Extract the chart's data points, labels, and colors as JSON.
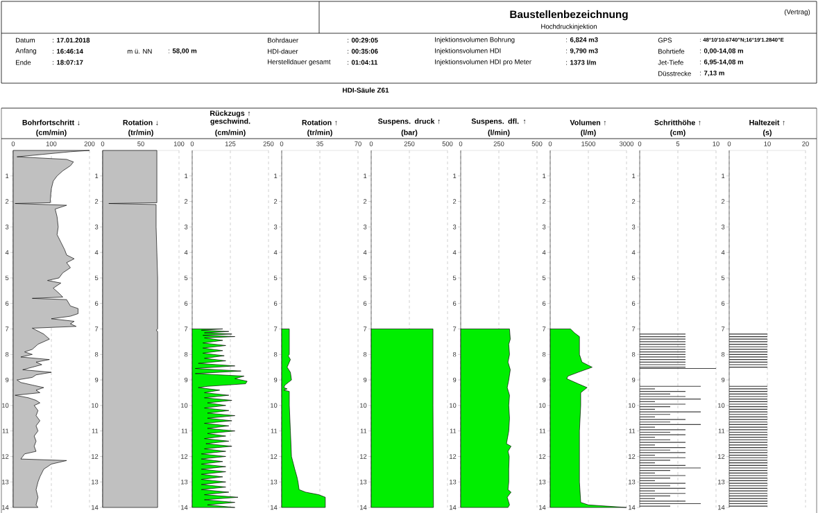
{
  "chart_data": [
    {
      "type": "other",
      "title": "Baustellenbezeichnung",
      "subtitle": "Hochdruckinjektion",
      "annotations": [
        "(Vertrag)",
        "Datum",
        ": **17.01.2018**",
        "Anfang",
        ": **16:46:14**",
        "Ende",
        ": **18:07:17**",
        "m ü. NN",
        ": **58,00 m**",
        "Bohrdauer",
        ": **00:29:05**",
        "HDI-dauer",
        ": **00:35:06**",
        "Herstelldauer gesamt",
        ": **01:04:11**",
        "Injektionsvolumen Bohrung",
        ": **6,824 m3**",
        "Injektionsvolumen HDI",
        ": **9,790 m3**",
        "Injektionsvolumen HDI pro Meter",
        ": **1373 l/m**",
        "GPS",
        ": **48°10'10.6740\"N;16°19'1.2840\"E**",
        "Bohrtiefe",
        ": **0,00-14,08 m**",
        "Jet-Tiefe",
        ": **6,95-14,08 m**",
        "Düsstrecke",
        ": **7,13 m**",
        "HDI-Säule Z61"
      ]
    },
    {
      "type": "area",
      "title": "Bohrfortschritt ↓",
      "xlabel": "(cm/min)",
      "xlim": [
        0,
        200
      ],
      "xticks": [
        0,
        100,
        200
      ],
      "ylim": [
        14,
        0
      ],
      "yticks": [
        1,
        2,
        3,
        4,
        5,
        6,
        7,
        8,
        9,
        10,
        11,
        12,
        13,
        14
      ],
      "grid": "x",
      "series": [
        {
          "color": "#c0c0c0",
          "x": [
            0,
            200,
            150,
            10,
            140,
            158,
            150,
            130,
            115,
            105,
            100,
            98,
            97,
            5,
            140,
            110,
            115,
            118,
            115,
            125,
            135,
            140,
            160,
            140,
            150,
            130,
            120,
            90,
            125,
            105,
            120,
            130,
            50,
            140,
            150,
            170,
            170,
            150,
            100,
            160,
            150,
            165,
            50,
            80,
            95,
            65,
            50,
            30,
            50,
            20,
            95,
            60,
            75,
            50,
            25,
            100,
            60,
            50,
            10,
            20,
            50,
            80,
            60,
            70,
            5,
            40,
            60,
            70,
            55,
            65,
            60,
            70,
            60,
            65,
            55,
            60,
            55,
            60,
            30,
            25,
            20,
            140,
            100,
            80,
            70,
            65,
            60,
            65,
            60,
            65,
            0
          ],
          "values": [
            0,
            0,
            0.05,
            0.25,
            0.35,
            0.45,
            0.6,
            0.8,
            1.0,
            1.2,
            1.5,
            1.8,
            2.05,
            2.08,
            2.15,
            2.3,
            2.6,
            3.0,
            3.3,
            3.6,
            3.9,
            4.1,
            4.25,
            4.4,
            4.6,
            4.8,
            5.0,
            5.1,
            5.2,
            5.4,
            5.6,
            5.75,
            5.8,
            5.85,
            6.1,
            6.2,
            6.4,
            6.5,
            6.6,
            6.7,
            6.8,
            6.9,
            6.97,
            7.2,
            7.4,
            7.6,
            7.8,
            7.9,
            8.0,
            8.1,
            8.2,
            8.3,
            8.4,
            8.5,
            8.6,
            8.7,
            8.8,
            8.9,
            9.0,
            9.1,
            9.2,
            9.3,
            9.4,
            9.5,
            9.6,
            9.7,
            9.8,
            9.9,
            10.0,
            10.2,
            10.4,
            10.6,
            10.8,
            11.0,
            11.2,
            11.4,
            11.6,
            11.8,
            11.9,
            12.0,
            12.1,
            12.16,
            12.3,
            12.5,
            12.8,
            13.0,
            13.3,
            13.6,
            13.9,
            14.0,
            14.0
          ]
        }
      ]
    },
    {
      "type": "area",
      "title": "Rotation ↓",
      "xlabel": "(tr/min)",
      "xlim": [
        0,
        100
      ],
      "xticks": [
        0,
        50,
        100
      ],
      "ylim": [
        14,
        0
      ],
      "yticks": [
        1,
        2,
        3,
        4,
        5,
        6,
        7,
        8,
        9,
        10,
        11,
        12,
        13,
        14
      ],
      "grid": "x",
      "series": [
        {
          "color": "#c0c0c0",
          "x": [
            0,
            71,
            71,
            8,
            70,
            70,
            71,
            72,
            72,
            70,
            72,
            72,
            0
          ],
          "values": [
            0,
            0,
            2.05,
            2.08,
            2.12,
            3.0,
            4.0,
            5.0,
            7.0,
            7.05,
            7.1,
            14.0,
            14.0
          ]
        }
      ]
    },
    {
      "type": "area",
      "title": "Rückzugs ↑ geschwind.",
      "xlabel": "(cm/min)",
      "xlim": [
        0,
        250
      ],
      "xticks": [
        0,
        125,
        250
      ],
      "ylim": [
        14,
        0
      ],
      "yticks": [
        1,
        2,
        3,
        4,
        5,
        6,
        7,
        8,
        9,
        10,
        11,
        12,
        13,
        14
      ],
      "grid": "x",
      "series": [
        {
          "color": "#00ee00",
          "x": [
            0,
            100,
            30,
            120,
            40,
            130,
            35,
            140,
            40,
            100,
            35,
            110,
            35,
            100,
            35,
            105,
            40,
            110,
            20,
            140,
            10,
            160,
            10,
            170,
            140,
            180,
            175,
            50,
            20,
            90,
            40,
            120,
            40,
            130,
            50,
            110,
            40,
            120,
            50,
            140,
            50,
            130,
            40,
            120,
            50,
            140,
            50,
            110,
            40,
            120,
            45,
            130,
            40,
            110,
            30,
            110,
            30,
            100,
            30,
            110,
            30,
            110,
            30,
            100,
            30,
            110,
            30,
            110,
            30,
            120,
            40,
            150,
            40,
            140,
            50,
            140,
            0
          ],
          "values": [
            7.0,
            7.0,
            7.05,
            7.1,
            7.15,
            7.2,
            7.25,
            7.3,
            7.35,
            7.45,
            7.55,
            7.65,
            7.75,
            7.85,
            7.95,
            8.05,
            8.15,
            8.25,
            8.35,
            8.45,
            8.55,
            8.65,
            8.75,
            8.85,
            8.95,
            9.05,
            9.15,
            9.25,
            9.3,
            9.4,
            9.5,
            9.6,
            9.7,
            9.8,
            9.9,
            10.0,
            10.1,
            10.2,
            10.3,
            10.4,
            10.5,
            10.6,
            10.7,
            10.8,
            10.9,
            11.0,
            11.1,
            11.2,
            11.3,
            11.4,
            11.5,
            11.6,
            11.7,
            11.8,
            11.9,
            12.0,
            12.1,
            12.2,
            12.3,
            12.4,
            12.5,
            12.6,
            12.7,
            12.8,
            12.9,
            13.0,
            13.1,
            13.2,
            13.3,
            13.4,
            13.5,
            13.6,
            13.7,
            13.8,
            13.9,
            14.0,
            14.0
          ]
        }
      ]
    },
    {
      "type": "area",
      "title": "Rotation ↑",
      "xlabel": "(tr/min)",
      "xlim": [
        0,
        70
      ],
      "xticks": [
        0,
        35,
        70
      ],
      "ylim": [
        14,
        0
      ],
      "yticks": [
        1,
        2,
        3,
        4,
        5,
        6,
        7,
        8,
        9,
        10,
        11,
        12,
        13,
        14
      ],
      "grid": "x",
      "series": [
        {
          "color": "#00ee00",
          "x": [
            0,
            7,
            7,
            6,
            8,
            5,
            8,
            9,
            6,
            3,
            2,
            5,
            2,
            7,
            7,
            8,
            9,
            12,
            14,
            15,
            16,
            22,
            34,
            40,
            40,
            0
          ],
          "values": [
            7.0,
            7.0,
            8.0,
            8.05,
            8.2,
            8.5,
            8.7,
            9.0,
            9.1,
            9.2,
            9.3,
            9.35,
            9.4,
            9.45,
            10.0,
            11.0,
            12.0,
            12.5,
            12.8,
            13.0,
            13.3,
            13.4,
            13.5,
            13.6,
            14.0,
            14.0
          ]
        }
      ]
    },
    {
      "type": "area",
      "title": "Suspens. druck ↑",
      "xlabel": "(bar)",
      "xlim": [
        0,
        500
      ],
      "xticks": [
        0,
        250,
        500
      ],
      "ylim": [
        14,
        0
      ],
      "yticks": [
        1,
        2,
        3,
        4,
        5,
        6,
        7,
        8,
        9,
        10,
        11,
        12,
        13,
        14
      ],
      "grid": "x",
      "series": [
        {
          "color": "#00ee00",
          "x": [
            0,
            405,
            405,
            408,
            0
          ],
          "values": [
            7.0,
            7.0,
            10.0,
            14.0,
            14.0
          ]
        }
      ]
    },
    {
      "type": "area",
      "title": "Suspens. dfl. ↑",
      "xlabel": "(l/min)",
      "xlim": [
        0,
        500
      ],
      "xticks": [
        0,
        250,
        500
      ],
      "ylim": [
        14,
        0
      ],
      "yticks": [
        1,
        2,
        3,
        4,
        5,
        6,
        7,
        8,
        9,
        10,
        11,
        12,
        13,
        14
      ],
      "grid": "x",
      "series": [
        {
          "color": "#00ee00",
          "x": [
            0,
            320,
            325,
            315,
            320,
            310,
            325,
            315,
            305,
            320,
            315,
            320,
            315,
            300,
            330,
            310,
            318,
            315,
            315,
            310,
            330,
            305,
            320,
            310,
            0
          ],
          "values": [
            7.0,
            7.0,
            7.4,
            7.6,
            8.0,
            8.3,
            8.6,
            9.0,
            9.3,
            9.6,
            10.0,
            10.5,
            11.0,
            11.5,
            11.6,
            11.8,
            12.0,
            12.5,
            13.0,
            13.3,
            13.4,
            13.6,
            13.9,
            14.0,
            14.0
          ]
        }
      ]
    },
    {
      "type": "area",
      "title": "Volumen ↑",
      "xlabel": "(l/m)",
      "xlim": [
        0,
        3000
      ],
      "xticks": [
        0,
        1500,
        3000
      ],
      "ylim": [
        14,
        0
      ],
      "yticks": [
        1,
        2,
        3,
        4,
        5,
        6,
        7,
        8,
        9,
        10,
        11,
        12,
        13,
        14
      ],
      "grid": "x",
      "series": [
        {
          "color": "#00ee00",
          "x": [
            0,
            800,
            950,
            1150,
            1150,
            1250,
            1650,
            1100,
            700,
            650,
            1100,
            1450,
            1200,
            1200,
            1150,
            1150,
            1200,
            1500,
            3000,
            0
          ],
          "values": [
            7.0,
            7.0,
            7.15,
            7.3,
            8.0,
            8.3,
            8.5,
            8.7,
            8.85,
            8.95,
            9.15,
            9.3,
            9.5,
            10.0,
            11.0,
            13.0,
            13.8,
            13.9,
            14.0,
            14.0
          ]
        }
      ]
    },
    {
      "type": "bar",
      "orientation": "horizontal",
      "title": "Schritthöhe ↑",
      "xlabel": "(cm)",
      "xlim": [
        0,
        10
      ],
      "xticks": [
        0,
        5,
        10
      ],
      "ylim": [
        14,
        0
      ],
      "yticks": [
        1,
        2,
        3,
        4,
        5,
        6,
        7,
        8,
        9,
        10,
        11,
        12,
        13,
        14
      ],
      "grid": "x",
      "series": [
        {
          "color": "#404040",
          "x": [
            7.2,
            7.3,
            7.4,
            7.5,
            7.6,
            7.7,
            7.8,
            7.9,
            8.0,
            8.1,
            8.2,
            8.3,
            8.4,
            8.5,
            8.55,
            9.25,
            9.35,
            9.45,
            9.55,
            9.65,
            9.75,
            9.85,
            9.95,
            10.05,
            10.15,
            10.25,
            10.35,
            10.45,
            10.55,
            10.65,
            10.75,
            10.85,
            10.95,
            11.05,
            11.15,
            11.25,
            11.35,
            11.45,
            11.55,
            11.65,
            11.75,
            11.85,
            11.95,
            12.05,
            12.15,
            12.25,
            12.35,
            12.45,
            12.55,
            12.65,
            12.75,
            12.85,
            12.95,
            13.05,
            13.15,
            13.25,
            13.35,
            13.45,
            13.55,
            13.65,
            13.75,
            13.85,
            13.95
          ],
          "values": [
            6,
            6,
            6,
            6,
            6,
            6,
            6,
            6,
            6,
            6,
            6,
            6,
            6,
            6,
            10,
            8,
            2,
            6,
            4,
            6,
            8,
            2,
            6,
            4,
            2,
            8,
            4,
            2,
            6,
            4,
            8,
            2,
            6,
            4,
            6,
            2,
            4,
            6,
            2,
            6,
            4,
            6,
            2,
            6,
            4,
            2,
            6,
            8,
            4,
            2,
            6,
            4,
            2,
            6,
            4,
            6,
            2,
            6,
            4,
            2,
            6,
            8,
            4
          ]
        }
      ]
    },
    {
      "type": "bar",
      "orientation": "horizontal",
      "title": "Haltezeit ↑",
      "xlabel": "(s)",
      "xlim": [
        0,
        20
      ],
      "xticks": [
        0,
        10,
        20
      ],
      "ylim": [
        14,
        0
      ],
      "yticks": [
        1,
        2,
        3,
        4,
        5,
        6,
        7,
        8,
        9,
        10,
        11,
        12,
        13,
        14
      ],
      "grid": "x",
      "series": [
        {
          "color": "#303030",
          "x": [
            7.2,
            7.3,
            7.4,
            7.5,
            7.6,
            7.7,
            7.8,
            7.9,
            8.0,
            8.1,
            8.2,
            8.3,
            8.4,
            8.5,
            9.25,
            9.35,
            9.45,
            9.55,
            9.65,
            9.75,
            9.85,
            9.95,
            10.05,
            10.15,
            10.25,
            10.35,
            10.45,
            10.55,
            10.65,
            10.75,
            10.85,
            10.95,
            11.05,
            11.15,
            11.25,
            11.35,
            11.45,
            11.55,
            11.65,
            11.75,
            11.85,
            11.95,
            12.05,
            12.15,
            12.25,
            12.35,
            12.45,
            12.55,
            12.65,
            12.75,
            12.85,
            12.95,
            13.05,
            13.15,
            13.25,
            13.35,
            13.45,
            13.55,
            13.65,
            13.75,
            13.85,
            13.95
          ],
          "values": [
            10,
            10,
            10,
            10,
            10,
            10,
            10,
            10,
            10,
            10,
            10,
            10,
            10,
            10,
            10,
            10,
            10,
            10,
            10,
            10,
            10,
            10,
            10,
            10,
            10,
            10,
            10,
            10,
            10,
            10,
            10,
            10,
            10,
            10,
            10,
            10,
            10,
            10,
            10,
            10,
            10,
            10,
            10,
            10,
            10,
            10,
            10,
            10,
            10,
            10,
            10,
            10,
            10,
            10,
            10,
            10,
            10,
            10,
            10,
            10,
            10,
            10
          ]
        }
      ]
    }
  ]
}
